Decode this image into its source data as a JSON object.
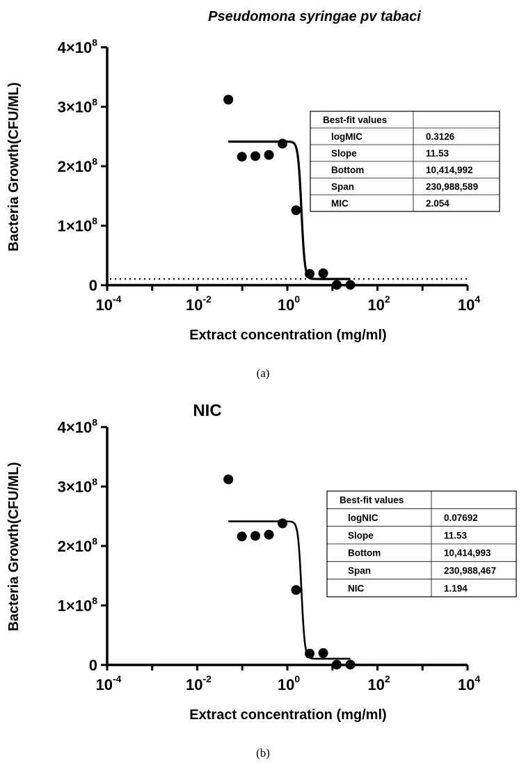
{
  "chart_data": [
    {
      "type": "scatter",
      "title": "Pseudomona syringae pv tabaci",
      "title_style": "italic",
      "panel_label": "(a)",
      "xlabel": "Extract concentration (mg/ml)",
      "ylabel": "Bacteria Growth(CFU/ML)",
      "x_scale": "log",
      "xlim": [
        0.0001,
        10000
      ],
      "ylim": [
        0,
        400000000
      ],
      "x_ticks": [
        {
          "value": 0.0001,
          "base": "10",
          "exp": "-4"
        },
        {
          "value": 0.01,
          "base": "10",
          "exp": "-2"
        },
        {
          "value": 1,
          "base": "10",
          "exp": "0"
        },
        {
          "value": 100,
          "base": "10",
          "exp": "2"
        },
        {
          "value": 10000,
          "base": "10",
          "exp": "4"
        }
      ],
      "y_ticks": [
        {
          "value": 0,
          "text": "0",
          "exp": ""
        },
        {
          "value": 100000000,
          "text": "1×10",
          "exp": "8"
        },
        {
          "value": 200000000,
          "text": "2×10",
          "exp": "8"
        },
        {
          "value": 300000000,
          "text": "3×10",
          "exp": "8"
        },
        {
          "value": 400000000,
          "text": "4×10",
          "exp": "8"
        }
      ],
      "points": [
        {
          "x": 0.049,
          "y": 312000000
        },
        {
          "x": 0.098,
          "y": 216000000
        },
        {
          "x": 0.195,
          "y": 217000000
        },
        {
          "x": 0.39,
          "y": 219000000
        },
        {
          "x": 0.78,
          "y": 238000000
        },
        {
          "x": 1.56,
          "y": 126000000
        },
        {
          "x": 3.12,
          "y": 19000000
        },
        {
          "x": 6.25,
          "y": 20000000
        },
        {
          "x": 12.5,
          "y": 500000
        },
        {
          "x": 25,
          "y": 500000
        }
      ],
      "fit": {
        "model": "sigmoidal dose-response",
        "bottom": 10414992,
        "span": 230988589,
        "log_midpoint": 0.3126,
        "slope": 11.53,
        "x_range": [
          0.049,
          25
        ]
      },
      "reference_line": {
        "y": 10414992,
        "style": "dotted"
      },
      "table": {
        "header": "Best-fit values",
        "rows": [
          {
            "label": "logMIC",
            "value": "0.3126"
          },
          {
            "label": "Slope",
            "value": "11.53"
          },
          {
            "label": "Bottom",
            "value": "10,414,992"
          },
          {
            "label": "Span",
            "value": "230,988,589"
          },
          {
            "label": "MIC",
            "value": "2.054"
          }
        ]
      },
      "grid": false,
      "legend": "none"
    },
    {
      "type": "scatter",
      "title": "NIC",
      "title_style": "plain",
      "panel_label": "(b)",
      "xlabel": "Extract concentration (mg/ml)",
      "ylabel": "Bacteria Growth(CFU/ML)",
      "x_scale": "log",
      "xlim": [
        0.0001,
        10000
      ],
      "ylim": [
        0,
        400000000
      ],
      "x_ticks": [
        {
          "value": 0.0001,
          "base": "10",
          "exp": "-4"
        },
        {
          "value": 0.01,
          "base": "10",
          "exp": "-2"
        },
        {
          "value": 1,
          "base": "10",
          "exp": "0"
        },
        {
          "value": 100,
          "base": "10",
          "exp": "2"
        },
        {
          "value": 10000,
          "base": "10",
          "exp": "4"
        }
      ],
      "y_ticks": [
        {
          "value": 0,
          "text": "0",
          "exp": ""
        },
        {
          "value": 100000000,
          "text": "1×10",
          "exp": "8"
        },
        {
          "value": 200000000,
          "text": "2×10",
          "exp": "8"
        },
        {
          "value": 300000000,
          "text": "3×10",
          "exp": "8"
        },
        {
          "value": 400000000,
          "text": "4×10",
          "exp": "8"
        }
      ],
      "points": [
        {
          "x": 0.049,
          "y": 312000000
        },
        {
          "x": 0.098,
          "y": 216000000
        },
        {
          "x": 0.195,
          "y": 217000000
        },
        {
          "x": 0.39,
          "y": 219000000
        },
        {
          "x": 0.78,
          "y": 238000000
        },
        {
          "x": 1.56,
          "y": 126000000
        },
        {
          "x": 3.12,
          "y": 19000000
        },
        {
          "x": 6.25,
          "y": 20000000
        },
        {
          "x": 12.5,
          "y": 500000
        },
        {
          "x": 25,
          "y": 500000
        }
      ],
      "fit": {
        "model": "sigmoidal dose-response",
        "bottom": 10414993,
        "span": 230988467,
        "log_midpoint": 0.3126,
        "slope": 11.53,
        "x_range": [
          0.049,
          25
        ]
      },
      "table": {
        "header": "Best-fit values",
        "rows": [
          {
            "label": "logNIC",
            "value": "0.07692"
          },
          {
            "label": "Slope",
            "value": "11.53"
          },
          {
            "label": "Bottom",
            "value": "10,414,993"
          },
          {
            "label": "Span",
            "value": "230,988,467"
          },
          {
            "label": "NIC",
            "value": "1.194"
          }
        ]
      },
      "grid": false,
      "legend": "none"
    }
  ]
}
